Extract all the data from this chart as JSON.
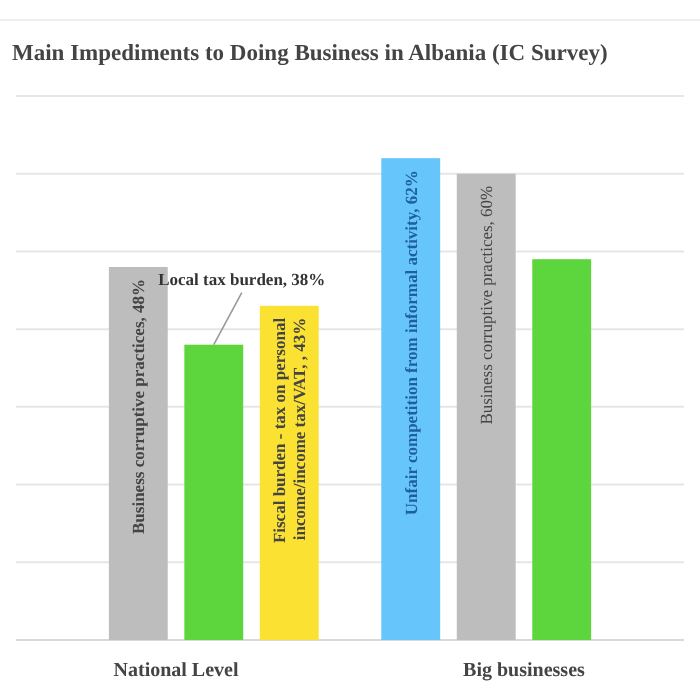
{
  "chart_data": {
    "type": "bar",
    "title": "Main Impediments to Doing Business in Albania (IC Survey)",
    "categories": [
      "National Level",
      "Big businesses"
    ],
    "series": [
      {
        "color": "#66c5fb",
        "values": [
          null,
          62
        ],
        "value_labels": [
          null,
          "Unfair competition from informal activity, 62%"
        ]
      },
      {
        "color": "#bdbdbd",
        "values": [
          48,
          60
        ],
        "value_labels": [
          "Business corruptive practices, 48%",
          "Business corruptive practices, 60%"
        ]
      },
      {
        "color": "#5dd63e",
        "values": [
          38,
          49
        ],
        "value_labels": [
          "Local tax burden, 38%",
          null
        ]
      },
      {
        "color": "#fbe232",
        "values": [
          43,
          null
        ],
        "value_labels": [
          "Fiscal burden - tax on personal income/income tax/VAT, , 43%",
          null
        ]
      }
    ],
    "ylim": [
      0,
      70
    ],
    "yticks": [
      {
        "value": 10,
        "label": null
      },
      {
        "value": 20,
        "label": null
      },
      {
        "value": 30,
        "label": null
      },
      {
        "value": 40,
        "label": null
      },
      {
        "value": 50,
        "label": null
      },
      {
        "value": 60,
        "label": null
      },
      {
        "value": 70,
        "label": null
      }
    ],
    "grid": "y",
    "tick_labels": "x"
  }
}
